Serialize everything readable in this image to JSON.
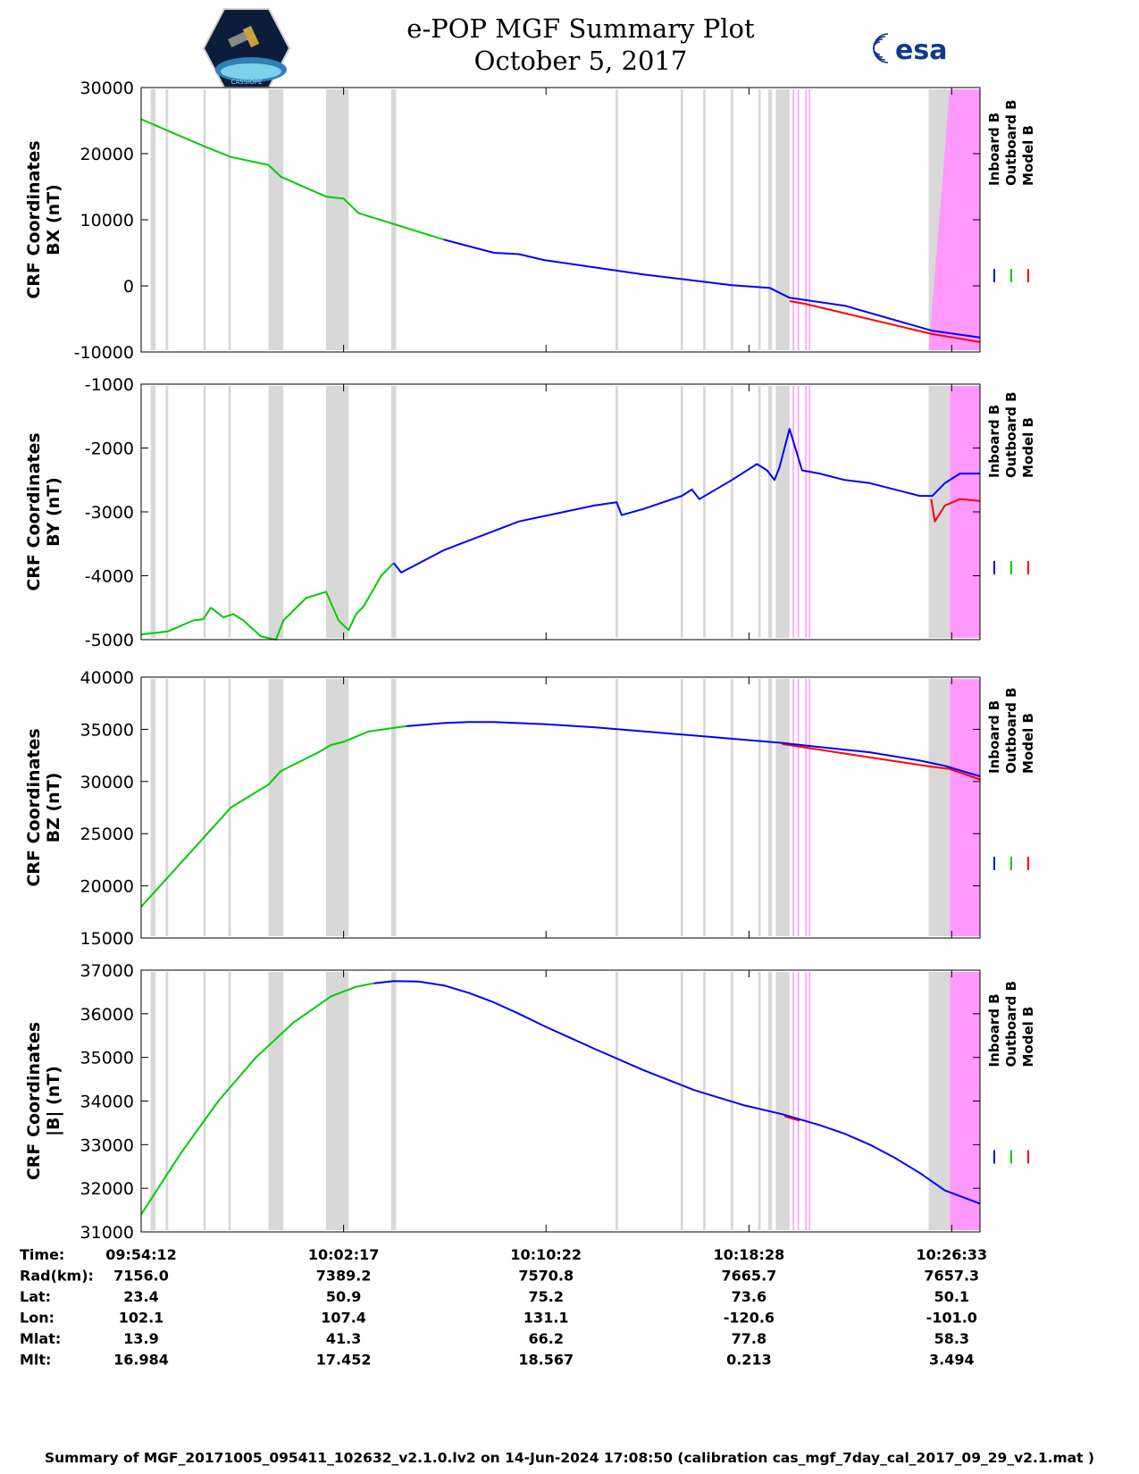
{
  "header": {
    "title_line1": "e-POP MGF Summary Plot",
    "title_line2": "October 5, 2017",
    "left_logo": "satellite-mission-patch",
    "left_logo_text": "CASSIOPE",
    "right_logo_text": "esa"
  },
  "legend": [
    {
      "name": "Inboard B",
      "color": "#0000ff"
    },
    {
      "name": "Outboard B",
      "color": "#00cc00"
    },
    {
      "name": "Model B",
      "color": "#ff0000"
    }
  ],
  "shading": {
    "gray_color": "#d8d8d8",
    "magenta_color": "#ff99ff",
    "gray_bands_min": [
      [
        -7.7,
        -7.5
      ],
      [
        -7.1,
        -7.0
      ],
      [
        -5.6,
        -5.5
      ],
      [
        -4.6,
        -4.5
      ],
      [
        -3.0,
        -2.4
      ],
      [
        -0.7,
        0.2
      ],
      [
        1.9,
        2.1
      ],
      [
        10.85,
        10.95
      ],
      [
        13.45,
        13.55
      ],
      [
        14.35,
        14.45
      ],
      [
        15.45,
        15.55
      ],
      [
        16.55,
        16.65
      ],
      [
        16.95,
        17.1
      ],
      [
        17.25,
        17.8
      ],
      [
        23.35,
        24.2
      ]
    ],
    "magenta_lines_min": [
      17.95,
      18.15,
      18.45,
      18.6
    ],
    "magenta_block_min": [
      24.2,
      25.4
    ]
  },
  "chart_data": [
    {
      "type": "line",
      "title": "",
      "ylabel": "CRF Coordinates\nBX (nT)",
      "ylim": [
        -10000,
        30000
      ],
      "yticks": [
        30000,
        20000,
        10000,
        0,
        -10000
      ],
      "x_units": "minutes from 10:02:17",
      "xlim": [
        -8.08,
        25.4
      ],
      "grid": false,
      "legend_placement": "right",
      "series": [
        {
          "name": "Outboard B",
          "x": [
            -8.08,
            -5.5,
            -4.5,
            -3.0,
            -2.5,
            -0.7,
            0.0,
            0.6,
            4.0
          ],
          "values": [
            25200,
            21000,
            19500,
            18300,
            16500,
            13500,
            13200,
            11000,
            7000
          ]
        },
        {
          "name": "Inboard B",
          "x": [
            4.0,
            6.0,
            7.0,
            8.0,
            10.0,
            12.0,
            14.0,
            15.5,
            17.0,
            17.8,
            20.0,
            23.5,
            25.4
          ],
          "values": [
            7000,
            5000,
            4800,
            3900,
            2800,
            1700,
            800,
            100,
            -300,
            -1800,
            -3000,
            -6800,
            -7800
          ]
        },
        {
          "name": "Model B",
          "x": [
            17.8,
            18.4,
            23.5,
            24.0,
            25.4
          ],
          "values": [
            -2300,
            -2700,
            -7300,
            -7600,
            -8500
          ]
        }
      ],
      "magenta_ramp": {
        "x": [
          23.35,
          24.2
        ],
        "top_values": [
          -9500,
          30000
        ]
      }
    },
    {
      "type": "line",
      "title": "",
      "ylabel": "CRF Coordinates\nBY (nT)",
      "ylim": [
        -5000,
        -1000
      ],
      "yticks": [
        -1000,
        -2000,
        -3000,
        -4000,
        -5000
      ],
      "x_units": "minutes from 10:02:17",
      "xlim": [
        -8.08,
        25.4
      ],
      "grid": false,
      "legend_placement": "right",
      "series": [
        {
          "name": "Outboard B",
          "x": [
            -8.08,
            -7.0,
            -6.0,
            -5.6,
            -5.3,
            -4.8,
            -4.4,
            -4.0,
            -3.3,
            -2.7,
            -2.4,
            -1.5,
            -0.7,
            -0.2,
            0.2,
            0.5,
            0.8,
            1.5,
            2.0
          ],
          "values": [
            -4920,
            -4870,
            -4700,
            -4680,
            -4500,
            -4650,
            -4600,
            -4700,
            -4950,
            -5000,
            -4700,
            -4350,
            -4250,
            -4700,
            -4850,
            -4600,
            -4480,
            -4000,
            -3800
          ]
        },
        {
          "name": "Inboard B",
          "x": [
            2.0,
            2.3,
            4.0,
            7.0,
            10.0,
            10.9,
            11.1,
            12.0,
            13.5,
            13.9,
            14.2,
            15.5,
            16.5,
            16.9,
            17.2,
            17.4,
            17.8,
            18.3,
            19.0,
            20.0,
            21.0,
            23.0,
            23.5,
            24.0,
            24.6,
            25.4
          ],
          "values": [
            -3800,
            -3950,
            -3600,
            -3150,
            -2900,
            -2850,
            -3050,
            -2950,
            -2750,
            -2650,
            -2800,
            -2500,
            -2250,
            -2350,
            -2500,
            -2300,
            -1700,
            -2350,
            -2400,
            -2500,
            -2550,
            -2750,
            -2750,
            -2550,
            -2400,
            -2400
          ]
        },
        {
          "name": "Model B",
          "x": [
            23.45,
            23.6,
            24.0,
            24.6,
            25.4
          ],
          "values": [
            -2800,
            -3150,
            -2900,
            -2800,
            -2830
          ]
        }
      ]
    },
    {
      "type": "line",
      "title": "",
      "ylabel": "CRF Coordinates\nBZ (nT)",
      "ylim": [
        15000,
        40000
      ],
      "yticks": [
        40000,
        35000,
        30000,
        25000,
        20000,
        15000
      ],
      "x_units": "minutes from 10:02:17",
      "xlim": [
        -8.08,
        25.4
      ],
      "grid": false,
      "legend_placement": "right",
      "series": [
        {
          "name": "Outboard B",
          "x": [
            -8.08,
            -6.0,
            -4.5,
            -3.0,
            -2.5,
            -1.0,
            -0.5,
            0.0,
            1.0,
            2.5
          ],
          "values": [
            18000,
            23500,
            27500,
            29700,
            31000,
            32800,
            33500,
            33800,
            34800,
            35300
          ]
        },
        {
          "name": "Inboard B",
          "x": [
            2.5,
            4.0,
            5.0,
            6.0,
            8.0,
            10.0,
            12.0,
            14.0,
            16.0,
            17.5,
            19.0,
            21.0,
            23.0,
            24.0,
            25.4
          ],
          "values": [
            35300,
            35600,
            35700,
            35700,
            35500,
            35200,
            34800,
            34400,
            34000,
            33700,
            33300,
            32800,
            32000,
            31500,
            30500
          ]
        },
        {
          "name": "Model B",
          "x": [
            17.5,
            18.3,
            23.5,
            24.2,
            25.4
          ],
          "values": [
            33600,
            33300,
            31400,
            31200,
            30200
          ]
        }
      ]
    },
    {
      "type": "line",
      "title": "",
      "ylabel": "CRF Coordinates\n|B| (nT)",
      "ylim": [
        31000,
        37000
      ],
      "yticks": [
        37000,
        36000,
        35000,
        34000,
        33000,
        32000,
        31000
      ],
      "x_units": "minutes from 10:02:17",
      "xlim": [
        -8.08,
        25.4
      ],
      "grid": false,
      "legend_placement": "right",
      "series": [
        {
          "name": "Outboard B",
          "x": [
            -8.08,
            -6.5,
            -5.0,
            -3.5,
            -2.0,
            -0.5,
            0.5,
            1.2
          ],
          "values": [
            31400,
            32800,
            34000,
            35000,
            35800,
            36400,
            36620,
            36700
          ]
        },
        {
          "name": "Inboard B",
          "x": [
            1.2,
            2.0,
            3.0,
            4.0,
            5.0,
            6.0,
            7.0,
            8.0,
            10.0,
            12.0,
            14.0,
            16.0,
            17.5,
            19.0,
            20.0,
            21.0,
            22.0,
            23.0,
            24.0,
            25.4
          ],
          "values": [
            36700,
            36750,
            36740,
            36650,
            36480,
            36260,
            36000,
            35720,
            35200,
            34700,
            34250,
            33900,
            33700,
            33450,
            33250,
            33000,
            32700,
            32350,
            31950,
            31650
          ]
        },
        {
          "name": "Model B",
          "x": [
            17.6,
            18.2
          ],
          "values": [
            33650,
            33550
          ]
        }
      ]
    }
  ],
  "xticks": {
    "positions_min": [
      -8.08,
      0,
      8.08,
      16.18,
      24.27
    ],
    "table_rows": [
      {
        "label": "Time:",
        "values": [
          "09:54:12",
          "10:02:17",
          "10:10:22",
          "10:18:28",
          "10:26:33"
        ]
      },
      {
        "label": "Rad(km):",
        "values": [
          "7156.0",
          "7389.2",
          "7570.8",
          "7665.7",
          "7657.3"
        ]
      },
      {
        "label": "Lat:",
        "values": [
          "23.4",
          "50.9",
          "75.2",
          "73.6",
          "50.1"
        ]
      },
      {
        "label": "Lon:",
        "values": [
          "102.1",
          "107.4",
          "131.1",
          "-120.6",
          "-101.0"
        ]
      },
      {
        "label": "Mlat:",
        "values": [
          "13.9",
          "41.3",
          "66.2",
          "77.8",
          "58.3"
        ]
      },
      {
        "label": "Mlt:",
        "values": [
          "16.984",
          "17.452",
          "18.567",
          "0.213",
          "3.494"
        ]
      }
    ]
  },
  "footer": "Summary of MGF_20171005_095411_102632_v2.1.0.lv2 on 14-Jun-2024 17:08:50 (calibration cas_mgf_7day_cal_2017_09_29_v2.1.mat )"
}
